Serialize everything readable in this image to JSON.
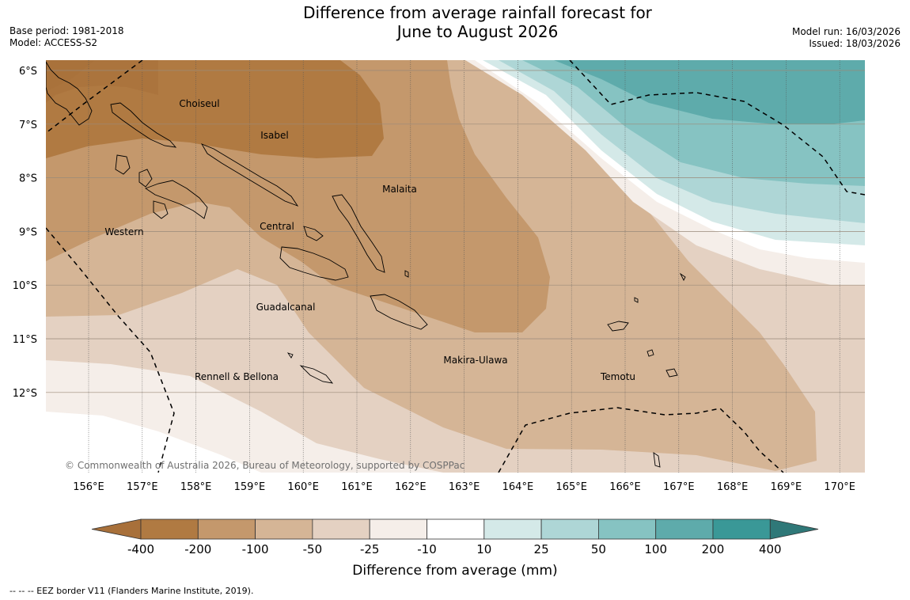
{
  "title_line1": "Difference from average rainfall forecast for",
  "title_line2": "June to August 2026",
  "base_period": "Base period: 1981-2018",
  "model": "Model: ACCESS-S2",
  "model_run": "Model run: 16/03/2026",
  "issued": "Issued: 18/03/2026",
  "copyright": "© Commonwealth of Australia 2026, Bureau of Meteorology, supported by COSPPac",
  "footnote": "-- -- -- EEZ border V11 (Flanders Marine Institute, 2019).",
  "map": {
    "lon_ticks": [
      "156°E",
      "157°E",
      "158°E",
      "159°E",
      "160°E",
      "161°E",
      "162°E",
      "163°E",
      "164°E",
      "165°E",
      "166°E",
      "167°E",
      "168°E",
      "169°E",
      "170°E"
    ],
    "lat_ticks": [
      "6°S",
      "7°S",
      "8°S",
      "9°S",
      "10°S",
      "11°S",
      "12°S"
    ],
    "regions": [
      "Choiseul",
      "Isabel",
      "Malaita",
      "Western",
      "Central",
      "Guadalcanal",
      "Makira-Ulawa",
      "Temotu",
      "Rennell & Bellona"
    ]
  },
  "colorbar": {
    "title": "Difference from average (mm)",
    "tick_labels": [
      "-400",
      "-200",
      "-100",
      "-50",
      "-25",
      "-10",
      "10",
      "25",
      "50",
      "100",
      "200",
      "400"
    ],
    "colors": [
      "#a8703a",
      "#b07a42",
      "#c4986c",
      "#d5b596",
      "#e4d1c2",
      "#f5eee9",
      "#ffffff",
      "#d4e9e8",
      "#aed6d6",
      "#86c3c2",
      "#5eabab",
      "#3a9897",
      "#2f7878"
    ]
  }
}
